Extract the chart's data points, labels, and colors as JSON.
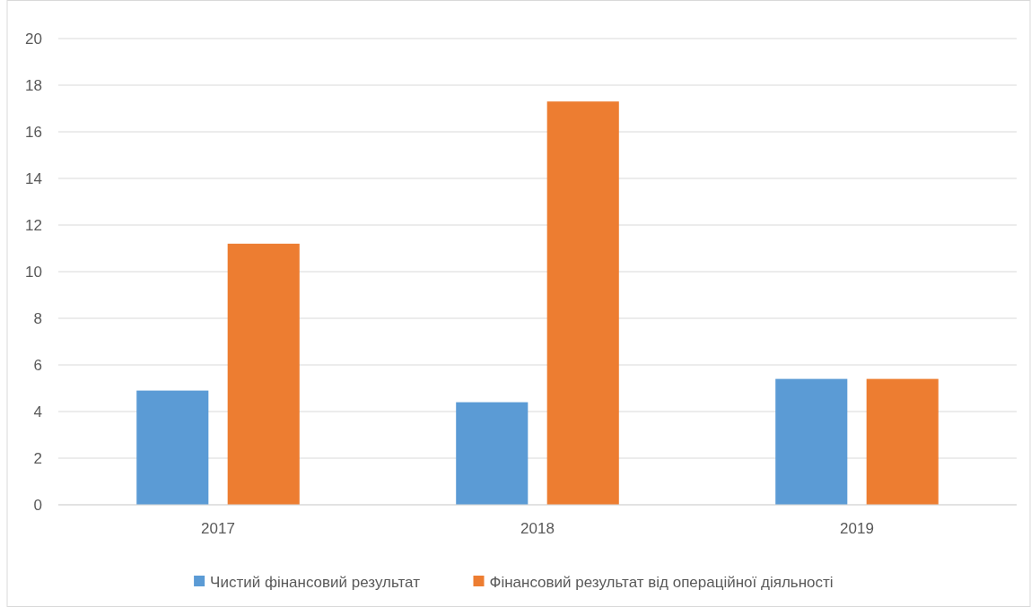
{
  "chart_data": {
    "type": "bar",
    "categories": [
      "2017",
      "2018",
      "2019"
    ],
    "series": [
      {
        "name": "Чистий фінансовий результат",
        "color": "#5b9bd5",
        "values": [
          4.9,
          4.4,
          5.4
        ]
      },
      {
        "name": "Фінансовий результат від операційної діяльності",
        "color": "#ed7d31",
        "values": [
          11.2,
          17.3,
          5.4
        ]
      }
    ],
    "ylim": [
      0,
      20
    ],
    "yticks": [
      0,
      2,
      4,
      6,
      8,
      10,
      12,
      14,
      16,
      18,
      20
    ],
    "grid": "y",
    "legend": "bottom"
  }
}
